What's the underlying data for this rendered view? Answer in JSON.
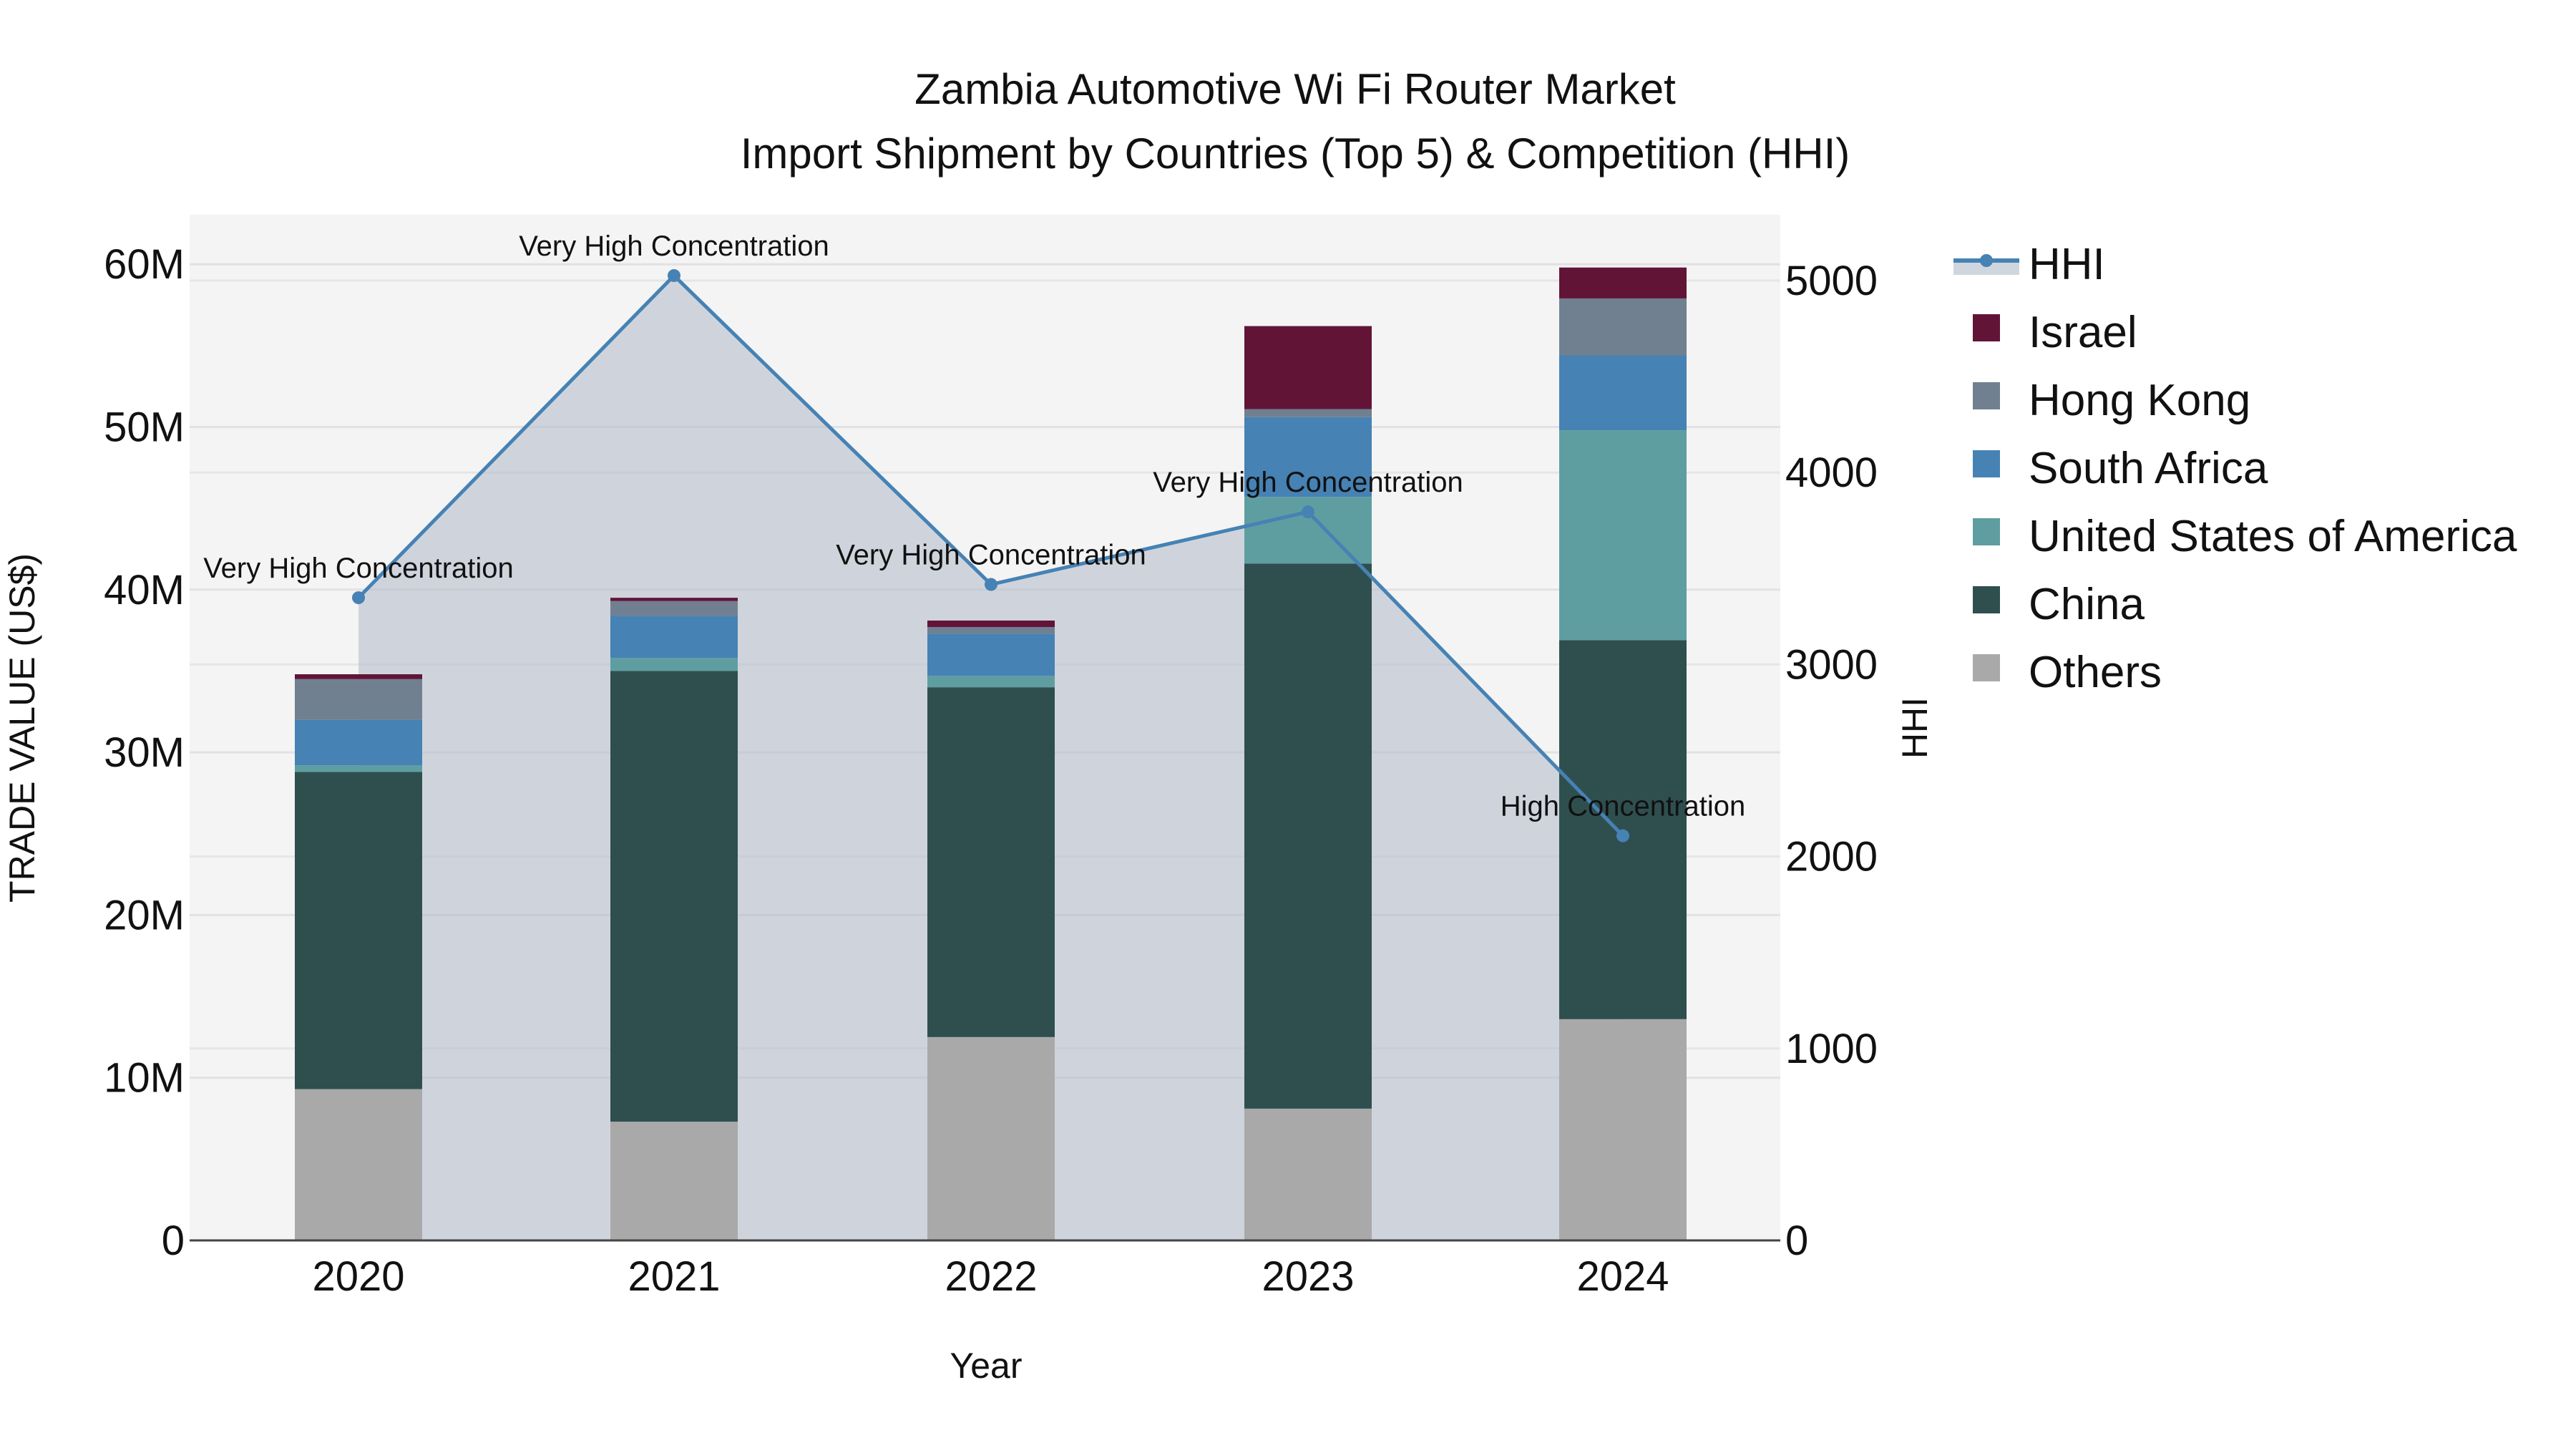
{
  "title": {
    "line1": "Zambia Automotive Wi Fi Router Market",
    "line2": "Import Shipment by Countries (Top 5) & Competition (HHI)"
  },
  "axes": {
    "x_label": "Year",
    "y_left_label": "TRADE VALUE (US$)",
    "y_right_label": "HHI",
    "y_left_ticks": [
      "0",
      "10M",
      "20M",
      "30M",
      "40M",
      "50M",
      "60M"
    ],
    "y_right_ticks": [
      "0",
      "1000",
      "2000",
      "3000",
      "4000",
      "5000"
    ],
    "x_ticks": [
      "2020",
      "2021",
      "2022",
      "2023",
      "2024"
    ]
  },
  "legend": [
    {
      "name": "HHI",
      "color": "#4682b4",
      "type": "line"
    },
    {
      "name": "Israel",
      "color": "#621437",
      "type": "bar"
    },
    {
      "name": "Hong Kong",
      "color": "#708090",
      "type": "bar"
    },
    {
      "name": "South Africa",
      "color": "#4682b4",
      "type": "bar"
    },
    {
      "name": "United States of America",
      "color": "#5f9ea0",
      "type": "bar"
    },
    {
      "name": "China",
      "color": "#2f4f4f",
      "type": "bar"
    },
    {
      "name": "Others",
      "color": "#a9a9a9",
      "type": "bar"
    }
  ],
  "chart_data": {
    "type": "bar",
    "stacked": true,
    "title": "Zambia Automotive Wi Fi Router Market — Import Shipment by Countries (Top 5) & Competition (HHI)",
    "xlabel": "Year",
    "ylabel": "TRADE VALUE (US$)",
    "y2label": "HHI",
    "categories": [
      "2020",
      "2021",
      "2022",
      "2023",
      "2024"
    ],
    "ylim": [
      0,
      63000000
    ],
    "y2lim": [
      0,
      5300
    ],
    "series": [
      {
        "name": "Others",
        "color": "#a9a9a9",
        "values": [
          9300000,
          7300000,
          12500000,
          8100000,
          13600000
        ]
      },
      {
        "name": "China",
        "color": "#2f4f4f",
        "values": [
          19500000,
          27700000,
          21500000,
          33500000,
          23300000
        ]
      },
      {
        "name": "United States of America",
        "color": "#5f9ea0",
        "values": [
          400000,
          800000,
          700000,
          4100000,
          12900000
        ]
      },
      {
        "name": "South Africa",
        "color": "#4682b4",
        "values": [
          2800000,
          2600000,
          2600000,
          4900000,
          4600000
        ]
      },
      {
        "name": "Hong Kong",
        "color": "#708090",
        "values": [
          2500000,
          900000,
          400000,
          500000,
          3500000
        ]
      },
      {
        "name": "Israel",
        "color": "#621437",
        "values": [
          300000,
          200000,
          400000,
          5100000,
          1900000
        ]
      }
    ],
    "line_series": {
      "name": "HHI",
      "axis": "right",
      "color": "#4682b4",
      "fill": "tozeroy",
      "values": [
        3348,
        5026,
        3417,
        3795,
        2108
      ],
      "annotations": [
        "Very High Concentration",
        "Very High Concentration",
        "Very High Concentration",
        "Very High Concentration",
        "High Concentration"
      ]
    },
    "grid": true,
    "legend_position": "right"
  }
}
